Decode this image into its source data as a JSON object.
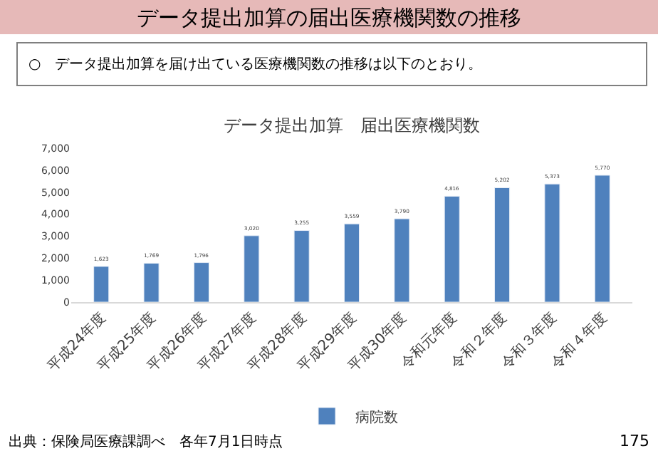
{
  "chart_data": {
    "type": "bar",
    "title": "データ提出加算の届出医療機関数の推移",
    "subtitle": "○　データ提出加算を届け出ている医療機関数の推移は以下のとおり。",
    "annotations": [
      "データ提出加算　届出医療機関数",
      "出典：保険局医療課調べ　各年7月1日時点",
      "175"
    ],
    "categories": [
      "平成24年度",
      "平成25年度",
      "平成26年度",
      "平成27年度",
      "平成28年度",
      "平成29年度",
      "平成30年度",
      "令和元年度",
      "令和２年度",
      "令和３年度",
      "令和４年度"
    ],
    "series": [
      {
        "name": "病院数",
        "color": "#4f81bd",
        "values": [
          1623,
          1769,
          1796,
          3020,
          3255,
          3559,
          3790,
          4816,
          5202,
          5373,
          5770
        ],
        "value_labels": [
          "1,623",
          "1,769",
          "1,796",
          "3,020",
          "3,255",
          "3,559",
          "3,790",
          "4,816",
          "5,202",
          "5,373",
          "5,770"
        ]
      }
    ],
    "ylim": [
      0,
      7000
    ],
    "yticks": [
      {
        "value": 0,
        "label": "0"
      },
      {
        "value": 1000,
        "label": "1,000"
      },
      {
        "value": 2000,
        "label": "2,000"
      },
      {
        "value": 3000,
        "label": "3,000"
      },
      {
        "value": 4000,
        "label": "4,000"
      },
      {
        "value": 5000,
        "label": "5,000"
      },
      {
        "value": 6000,
        "label": "6,000"
      },
      {
        "value": 7000,
        "label": "7,000"
      }
    ],
    "grid": false,
    "legend": "bottom"
  }
}
